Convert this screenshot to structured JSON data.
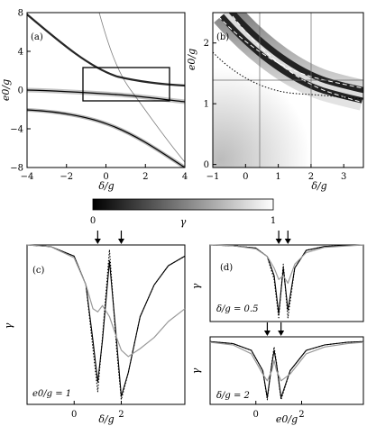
{
  "figure": {
    "panel_labels": {
      "a": "(a)",
      "b": "(b)",
      "c": "(c)",
      "d": "(d)"
    },
    "colorbar": {
      "label": "γ",
      "ticks": [
        "0",
        "1"
      ],
      "range": [
        0,
        1
      ]
    },
    "annotations": {
      "c": "e0/g = 1",
      "d": "δ/g = 0.5",
      "e": "δ/g = 2"
    }
  },
  "chart_data": [
    {
      "id": "a",
      "type": "heatmap",
      "xlabel": "δ/g",
      "ylabel": "e0/g",
      "xlim": [
        -4,
        4
      ],
      "ylim": [
        -8,
        8
      ],
      "xticks": [
        "−4",
        "−2",
        "0",
        "2",
        "4"
      ],
      "yticks": [
        "8",
        "4",
        "0",
        "−4",
        "−8"
      ],
      "inset_rectangle": {
        "x": [
          -1,
          3.6
        ],
        "y": [
          -1,
          2.5
        ]
      }
    },
    {
      "id": "b",
      "type": "heatmap",
      "xlabel": "δ/g",
      "ylabel": "e0/g",
      "xlim": [
        -1,
        3.6
      ],
      "ylim": [
        -0.05,
        2.5
      ],
      "xticks": [
        "−1",
        "0",
        "1",
        "2",
        "3"
      ],
      "yticks": [
        "0",
        "1",
        "2"
      ],
      "grid_lines": {
        "x": [
          0.5,
          2.0
        ],
        "y": [
          1.0
        ]
      }
    },
    {
      "id": "c",
      "type": "line",
      "xlabel": "δ/g",
      "ylabel": "γ",
      "xticks": [
        "0",
        "2"
      ],
      "ylim": [
        0,
        1
      ],
      "arrows_at": [
        1.0,
        2.0
      ],
      "series": [
        {
          "style": "solid black",
          "x": [
            -2,
            -1,
            0,
            0.5,
            0.8,
            1.0,
            1.2,
            1.5,
            1.8,
            2.0,
            2.3,
            2.8,
            3.4,
            4.0,
            4.7
          ],
          "y": [
            1.0,
            0.99,
            0.93,
            0.75,
            0.4,
            0.14,
            0.4,
            0.9,
            0.4,
            0.05,
            0.2,
            0.55,
            0.75,
            0.87,
            0.93
          ]
        },
        {
          "style": "dotted black",
          "x": [
            -2,
            -1,
            0,
            0.5,
            0.8,
            1.0,
            1.2,
            1.5,
            1.8,
            2.0,
            2.3,
            2.8,
            3.4,
            4.0,
            4.7
          ],
          "y": [
            1.0,
            0.99,
            0.93,
            0.75,
            0.35,
            0.08,
            0.42,
            0.97,
            0.35,
            0.03,
            0.2,
            0.55,
            0.75,
            0.87,
            0.93
          ]
        },
        {
          "style": "solid gray",
          "x": [
            -2,
            -1,
            0,
            0.5,
            0.8,
            1.0,
            1.2,
            1.5,
            1.8,
            2.0,
            2.3,
            2.8,
            3.4,
            4.0,
            4.7
          ],
          "y": [
            1.0,
            0.99,
            0.92,
            0.75,
            0.6,
            0.58,
            0.62,
            0.55,
            0.42,
            0.34,
            0.3,
            0.35,
            0.42,
            0.52,
            0.6
          ]
        }
      ]
    },
    {
      "id": "d",
      "type": "line",
      "ylabel": "γ",
      "xticks": [
        "0",
        "2"
      ],
      "arrows_at": [
        1.0,
        1.4
      ],
      "series": [
        {
          "style": "solid black",
          "x": [
            -2,
            -1,
            0,
            0.5,
            0.8,
            1.0,
            1.2,
            1.4,
            1.7,
            2.2,
            3.0,
            4.7
          ],
          "y": [
            1.0,
            0.99,
            0.96,
            0.85,
            0.6,
            0.1,
            0.7,
            0.15,
            0.7,
            0.93,
            0.98,
            1.0
          ]
        },
        {
          "style": "dotted black",
          "x": [
            -2,
            -1,
            0,
            0.5,
            0.8,
            1.0,
            1.2,
            1.4,
            1.7,
            2.2,
            3.0,
            4.7
          ],
          "y": [
            1.0,
            0.99,
            0.96,
            0.85,
            0.55,
            0.05,
            0.75,
            0.05,
            0.7,
            0.93,
            0.98,
            1.0
          ]
        },
        {
          "style": "solid gray",
          "x": [
            -2,
            -1,
            0,
            0.5,
            0.8,
            1.0,
            1.2,
            1.4,
            1.7,
            2.2,
            3.0,
            4.7
          ],
          "y": [
            1.0,
            0.99,
            0.95,
            0.85,
            0.7,
            0.55,
            0.6,
            0.5,
            0.75,
            0.9,
            0.97,
            1.0
          ]
        }
      ]
    },
    {
      "id": "e",
      "type": "line",
      "xlabel": "e0/g",
      "ylabel": "γ",
      "xticks": [
        "0",
        "2"
      ],
      "arrows_at": [
        0.5,
        1.1
      ],
      "series": [
        {
          "style": "solid black",
          "x": [
            -2,
            -1,
            -0.2,
            0.3,
            0.5,
            0.7,
            0.8,
            0.9,
            1.1,
            1.5,
            2.2,
            3.0,
            4.0,
            4.7
          ],
          "y": [
            0.93,
            0.9,
            0.8,
            0.5,
            0.1,
            0.6,
            0.8,
            0.6,
            0.1,
            0.5,
            0.8,
            0.88,
            0.92,
            0.93
          ]
        },
        {
          "style": "dotted black",
          "x": [
            -2,
            -1,
            -0.2,
            0.3,
            0.5,
            0.7,
            0.8,
            0.9,
            1.1,
            1.5,
            2.2,
            3.0,
            4.0,
            4.7
          ],
          "y": [
            0.93,
            0.9,
            0.8,
            0.5,
            0.07,
            0.62,
            0.85,
            0.62,
            0.07,
            0.5,
            0.8,
            0.88,
            0.92,
            0.93
          ]
        },
        {
          "style": "solid gray",
          "x": [
            -2,
            -1,
            -0.2,
            0.3,
            0.5,
            0.7,
            0.8,
            0.9,
            1.1,
            1.5,
            2.2,
            3.0,
            4.0,
            4.7
          ],
          "y": [
            0.92,
            0.88,
            0.75,
            0.45,
            0.35,
            0.5,
            0.65,
            0.5,
            0.35,
            0.45,
            0.75,
            0.85,
            0.9,
            0.92
          ]
        }
      ]
    }
  ]
}
